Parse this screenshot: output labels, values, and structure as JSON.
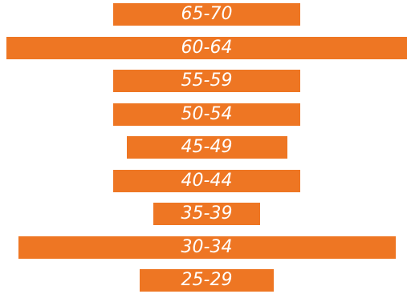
{
  "chart_data": {
    "type": "bar",
    "orientation": "horizontal-centered",
    "categories": [
      "65-70",
      "60-64",
      "55-59",
      "50-54",
      "45-49",
      "40-44",
      "35-39",
      "30-34",
      "25-29"
    ],
    "values": [
      233,
      500,
      233,
      233,
      200,
      233,
      133,
      470,
      167
    ],
    "xlim": [
      0,
      500
    ],
    "bar_color": "#EE7623",
    "label_color": "#FFFFFF",
    "grid": false,
    "legend": "none"
  }
}
